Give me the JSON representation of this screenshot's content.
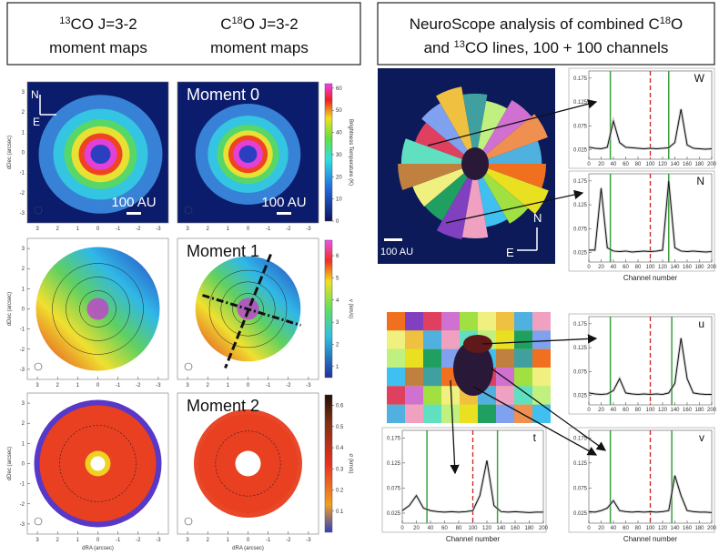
{
  "header_left": {
    "col1": {
      "sup": "13",
      "line1": "CO J=3-2",
      "line2": "moment maps"
    },
    "col2": {
      "pre": "C",
      "sup": "18",
      "line1": "O J=3-2",
      "line2": "moment maps"
    }
  },
  "header_right": {
    "line1": "NeuroScope analysis of combined C",
    "sup1": "18",
    "line1_end": "O",
    "line2_pre": "and ",
    "sup2": "13",
    "line2": "CO  lines, 100 + 100 channels"
  },
  "maps": {
    "rows": [
      {
        "label": "Moment 0",
        "colorbar": {
          "label": "Brightness Temperature (K)",
          "lim": [
            0,
            62
          ],
          "ticks": [
            0,
            10,
            20,
            30,
            40,
            50,
            60
          ]
        }
      },
      {
        "label": "Moment 1",
        "colorbar": {
          "label": "v (km/s)",
          "lim": [
            0.5,
            6.7
          ],
          "ticks": [
            1,
            2,
            3,
            4,
            5,
            6
          ]
        }
      },
      {
        "label": "Moment 2",
        "colorbar": {
          "label": "σ (km/s)",
          "lim": [
            0,
            0.65
          ],
          "ticks": [
            0.1,
            0.2,
            0.3,
            0.4,
            0.5,
            0.6
          ]
        }
      }
    ],
    "xlim": [
      3.5,
      -3.5
    ],
    "ylim": [
      -3.5,
      3.5
    ],
    "xticks": [
      3,
      2,
      1,
      0,
      -1,
      -2,
      -3
    ],
    "yticks": [
      -3,
      -2,
      -1,
      0,
      1,
      2,
      3
    ],
    "xlabel": "dRA (arcsec)",
    "ylabel": "dDec (arcsec)",
    "scalebar": "100 AU",
    "north": "N",
    "east": "E"
  },
  "cluster": {
    "scalebar": "100 AU",
    "north": "N",
    "east": "E"
  },
  "spectra": {
    "xlabel": "Channel number",
    "xlim": [
      0,
      200
    ],
    "ylim": [
      0.005,
      0.19
    ],
    "xticks": [
      0,
      20,
      40,
      60,
      80,
      100,
      120,
      140,
      160,
      180,
      200
    ],
    "yticks": [
      0.025,
      0.075,
      0.125,
      0.175
    ],
    "x": [
      0,
      10,
      20,
      30,
      40,
      50,
      60,
      70,
      80,
      90,
      100,
      110,
      120,
      130,
      140,
      150,
      160,
      170,
      180,
      190,
      200
    ],
    "panels": [
      {
        "label": "W",
        "green_lines": [
          35,
          130
        ],
        "red_line": 100,
        "values": [
          0.03,
          0.028,
          0.027,
          0.03,
          0.085,
          0.04,
          0.03,
          0.029,
          0.028,
          0.027,
          0.028,
          0.027,
          0.028,
          0.029,
          0.04,
          0.11,
          0.035,
          0.028,
          0.027,
          0.026,
          0.027
        ]
      },
      {
        "label": "N",
        "green_lines": [
          35,
          130
        ],
        "red_line": 100,
        "values": [
          0.03,
          0.03,
          0.16,
          0.035,
          0.028,
          0.027,
          0.028,
          0.026,
          0.027,
          0.028,
          0.027,
          0.028,
          0.03,
          0.175,
          0.035,
          0.028,
          0.027,
          0.028,
          0.027,
          0.026,
          0.027
        ]
      },
      {
        "label": "u",
        "green_lines": [
          35,
          135
        ],
        "red_line": 100,
        "values": [
          0.03,
          0.028,
          0.027,
          0.028,
          0.035,
          0.06,
          0.03,
          0.028,
          0.027,
          0.028,
          0.027,
          0.028,
          0.027,
          0.03,
          0.05,
          0.145,
          0.06,
          0.03,
          0.028,
          0.027,
          0.027
        ]
      },
      {
        "label": "t",
        "green_lines": [
          35,
          135
        ],
        "red_line": 100,
        "values": [
          0.03,
          0.04,
          0.06,
          0.035,
          0.03,
          0.028,
          0.027,
          0.028,
          0.027,
          0.028,
          0.03,
          0.06,
          0.13,
          0.04,
          0.028,
          0.027,
          0.028,
          0.027,
          0.026,
          0.027,
          0.027
        ]
      },
      {
        "label": "v",
        "green_lines": [
          35,
          135
        ],
        "red_line": 100,
        "values": [
          0.028,
          0.027,
          0.03,
          0.035,
          0.05,
          0.03,
          0.028,
          0.027,
          0.028,
          0.027,
          0.028,
          0.027,
          0.028,
          0.03,
          0.1,
          0.06,
          0.03,
          0.028,
          0.027,
          0.027,
          0.026
        ]
      }
    ]
  }
}
